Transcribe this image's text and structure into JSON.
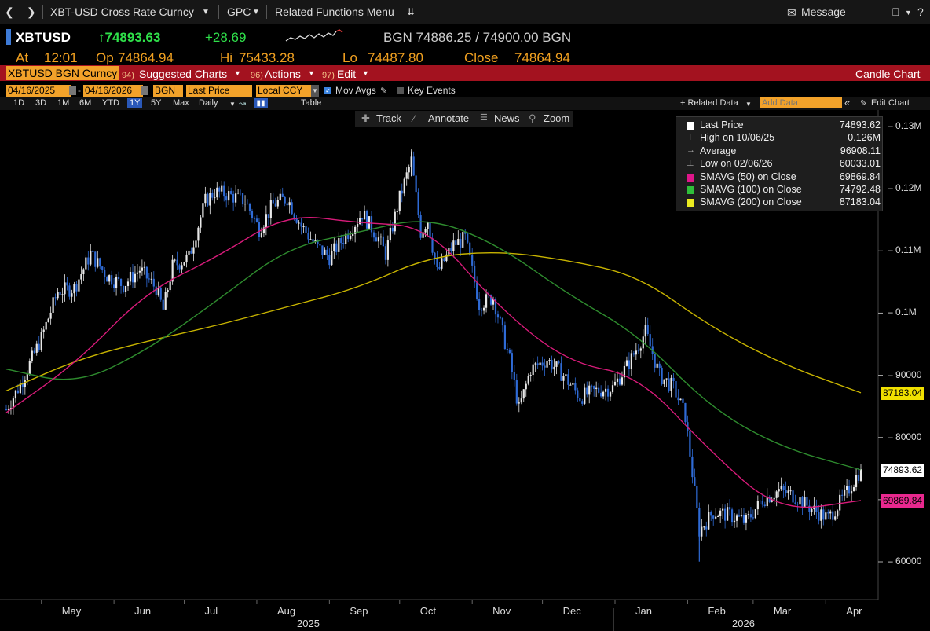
{
  "window": {
    "security_title": "XBT-USD Cross Rate Curncy",
    "function": "GPC",
    "related_menu": "Related Functions Menu",
    "message": "Message"
  },
  "quote": {
    "ticker": "XBTUSD",
    "last": "↑74893.63",
    "change": "+28.69",
    "source_bid_ask": "BGN  74886.25 / 74900.00  BGN",
    "at_label": "At",
    "at_time": "12:01",
    "op_label": "Op",
    "op_value": "74864.94",
    "hi_label": "Hi",
    "hi_value": "75433.28",
    "lo_label": "Lo",
    "lo_value": "74487.80",
    "close_label": "Close",
    "close_value": "74864.94"
  },
  "menubar": {
    "security_tag": "XBTUSD BGN Curncy",
    "suggested_num": "94)",
    "suggested": "Suggested Charts",
    "actions_num": "96)",
    "actions": "Actions",
    "edit_num": "97)",
    "edit": "Edit",
    "chart_type": "Candle Chart"
  },
  "params": {
    "start_date": "04/16/2025",
    "end_date": "04/16/2026",
    "source": "BGN",
    "field": "Last Price",
    "currency": "Local CCY",
    "mov_avgs": "Mov Avgs",
    "key_events": "Key Events",
    "related_data": "+ Related Data",
    "add_data_placeholder": "Add Data",
    "edit_chart": "Edit Chart"
  },
  "ranges": {
    "items": [
      "1D",
      "3D",
      "1M",
      "6M",
      "YTD",
      "1Y",
      "5Y",
      "Max"
    ],
    "selected": "1Y",
    "period": "Daily",
    "table": "Table"
  },
  "tools": {
    "track": "Track",
    "annotate": "Annotate",
    "news": "News",
    "zoom": "Zoom"
  },
  "legend": {
    "rows": [
      {
        "label": "Last Price",
        "value": "74893.62",
        "color": "#ffffff"
      },
      {
        "label": "High on 10/06/25",
        "value": "0.126M",
        "color": "#aaaaaa"
      },
      {
        "label": "Average",
        "value": "96908.11",
        "color": "#aaaaaa"
      },
      {
        "label": "Low on 02/06/26",
        "value": "60033.01",
        "color": "#aaaaaa"
      },
      {
        "label": "SMAVG (50)  on Close",
        "value": "69869.84",
        "color": "#e0168a"
      },
      {
        "label": "SMAVG (100)  on Close",
        "value": "74792.48",
        "color": "#2fbf3a"
      },
      {
        "label": "SMAVG (200)  on Close",
        "value": "87183.04",
        "color": "#eaea20"
      }
    ]
  },
  "axis_labels": {
    "sma200": "87183.04",
    "last": "74893.62",
    "sma50": "69869.84"
  },
  "colors": {
    "sma50": "#d81b7a",
    "sma100": "#2e8b2e",
    "sma200": "#c8b400",
    "up": "#e8e8e8",
    "down": "#2f6bd6",
    "accent": "#f2a22a",
    "menu_red": "#a3121f"
  },
  "chart_data": {
    "type": "line",
    "ylim": [
      57000,
      134000
    ],
    "y_ticks": [
      60000,
      70000,
      80000,
      90000,
      100000,
      110000,
      120000,
      130000
    ],
    "y_tick_labels": [
      "60000",
      "70000",
      "80000",
      "90000",
      "0.1M",
      "0.11M",
      "0.12M",
      "0.13M"
    ],
    "month_labels": [
      "May",
      "Jun",
      "Jul",
      "Aug",
      "Sep",
      "Oct",
      "Nov",
      "Dec",
      "Jan",
      "Feb",
      "Mar",
      "Apr"
    ],
    "year_labels": [
      "2025",
      "2026"
    ],
    "price": {
      "x": [
        "2025-04-16",
        "2025-04-22",
        "2025-05-01",
        "2025-05-08",
        "2025-05-15",
        "2025-05-22",
        "2025-05-29",
        "2025-06-05",
        "2025-06-12",
        "2025-06-19",
        "2025-06-22",
        "2025-06-26",
        "2025-07-03",
        "2025-07-10",
        "2025-07-14",
        "2025-07-20",
        "2025-07-27",
        "2025-08-02",
        "2025-08-08",
        "2025-08-14",
        "2025-08-20",
        "2025-08-27",
        "2025-09-01",
        "2025-09-08",
        "2025-09-15",
        "2025-09-22",
        "2025-09-25",
        "2025-10-01",
        "2025-10-06",
        "2025-10-10",
        "2025-10-13",
        "2025-10-17",
        "2025-10-24",
        "2025-10-29",
        "2025-11-04",
        "2025-11-10",
        "2025-11-17",
        "2025-11-21",
        "2025-11-26",
        "2025-12-03",
        "2025-12-10",
        "2025-12-17",
        "2025-12-24",
        "2025-12-31",
        "2026-01-07",
        "2026-01-14",
        "2026-01-20",
        "2026-01-26",
        "2026-01-31",
        "2026-02-06",
        "2026-02-12",
        "2026-02-19",
        "2026-02-26",
        "2026-03-05",
        "2026-03-12",
        "2026-03-19",
        "2026-03-26",
        "2026-04-02",
        "2026-04-09",
        "2026-04-16"
      ],
      "close": [
        84500,
        88500,
        96000,
        103500,
        104000,
        109500,
        106000,
        104500,
        107000,
        104000,
        100500,
        107500,
        109000,
        118000,
        119500,
        119000,
        118000,
        113500,
        117500,
        118500,
        114000,
        110500,
        109000,
        112500,
        116000,
        112000,
        109500,
        118500,
        124500,
        113000,
        115000,
        106500,
        111000,
        112000,
        101500,
        102500,
        92500,
        84500,
        91000,
        92500,
        90000,
        86500,
        87500,
        88000,
        92000,
        97000,
        90000,
        88000,
        83500,
        65000,
        68000,
        67500,
        66500,
        70000,
        71500,
        70500,
        68500,
        67000,
        70500,
        74893.62
      ],
      "high_point": {
        "date": "2025-10-06",
        "value": 126000
      },
      "low_point": {
        "date": "2026-02-06",
        "value": 60033.01
      }
    },
    "sma50": {
      "x": [
        "2025-04-16",
        "2025-05-16",
        "2025-06-15",
        "2025-07-15",
        "2025-08-14",
        "2025-09-13",
        "2025-10-13",
        "2025-11-12",
        "2025-12-12",
        "2026-01-11",
        "2026-02-10",
        "2026-03-12",
        "2026-04-16"
      ],
      "values": [
        84000,
        92000,
        103500,
        109000,
        116000,
        114500,
        114000,
        101000,
        92000,
        90000,
        78000,
        68000,
        69869.84
      ]
    },
    "sma100": {
      "x": [
        "2025-04-16",
        "2025-05-16",
        "2025-06-15",
        "2025-07-15",
        "2025-08-14",
        "2025-09-13",
        "2025-10-13",
        "2025-11-12",
        "2025-12-12",
        "2026-01-11",
        "2026-02-10",
        "2026-03-12",
        "2026-04-16"
      ],
      "values": [
        91000,
        88500,
        94000,
        102000,
        110500,
        113000,
        115500,
        111000,
        103000,
        96500,
        85000,
        78500,
        74792.48
      ]
    },
    "sma200": {
      "x": [
        "2025-04-16",
        "2025-05-16",
        "2025-06-15",
        "2025-07-15",
        "2025-08-14",
        "2025-09-13",
        "2025-10-13",
        "2025-11-12",
        "2025-12-12",
        "2026-01-11",
        "2026-02-10",
        "2026-03-12",
        "2026-04-16"
      ],
      "values": [
        87500,
        92500,
        95500,
        98000,
        101000,
        104000,
        109000,
        110000,
        108500,
        106000,
        98000,
        92000,
        87183.04
      ]
    }
  }
}
